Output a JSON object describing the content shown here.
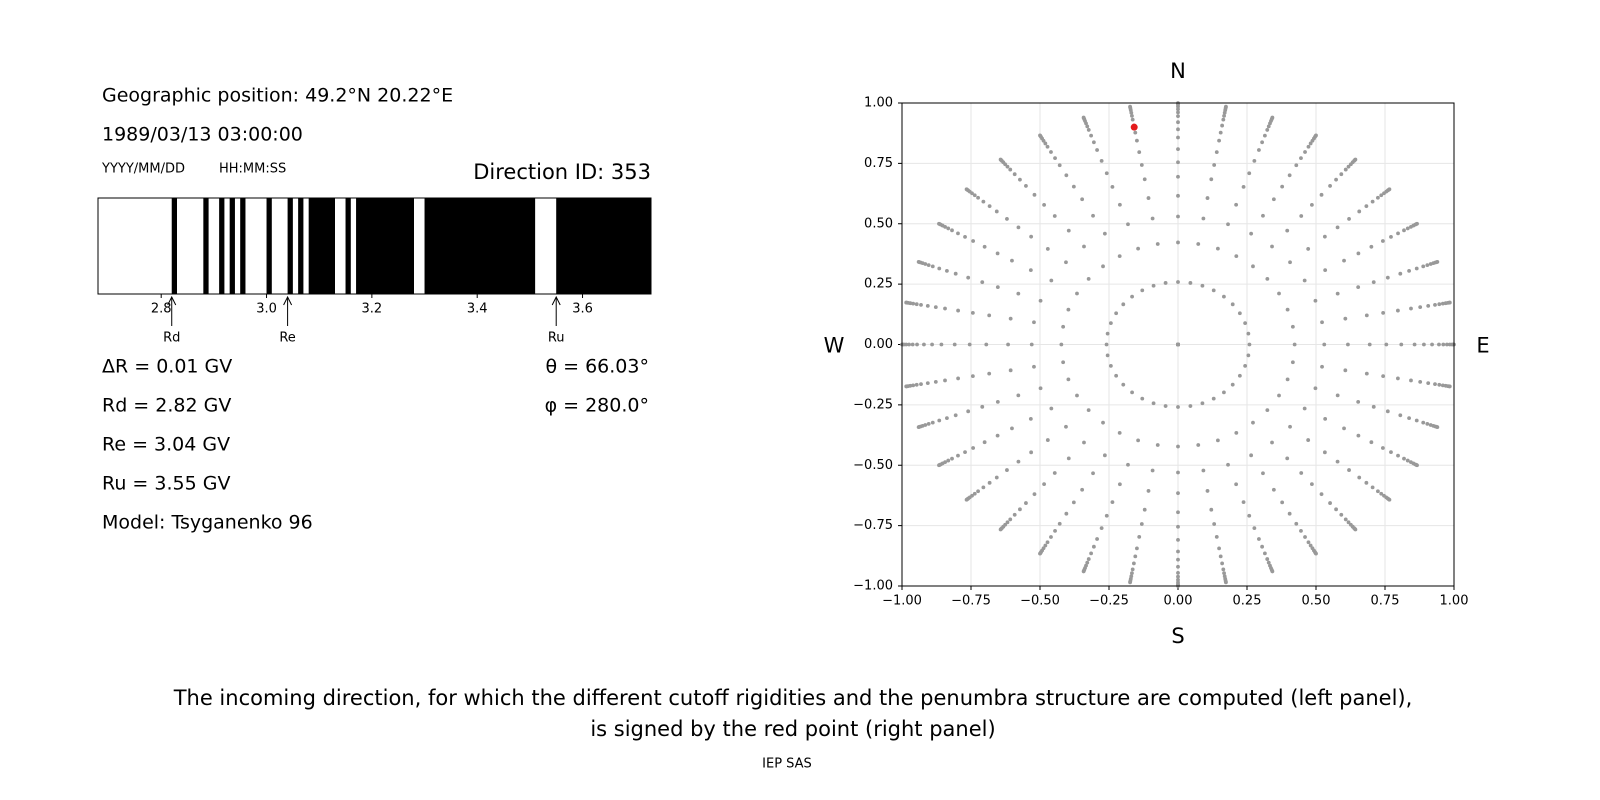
{
  "info": {
    "position": "Geographic position: 49.2°N 20.22°E",
    "datetime": "1989/03/13 03:00:00",
    "date_format": "YYYY/MM/DD",
    "time_format": "HH:MM:SS",
    "direction": "Direction ID: 353",
    "delta": "ΔR = 0.01 GV",
    "rd": "Rd = 2.82 GV",
    "re": "Re = 3.04 GV",
    "ru": "Ru = 3.55 GV",
    "model": "Model: Tsyganenko 96",
    "theta": "θ = 66.03°",
    "phi": "φ = 280.0°"
  },
  "chart_data": [
    {
      "type": "penumbra",
      "xlim": [
        2.68,
        3.73
      ],
      "xticks": [
        2.8,
        {
          "value": 3,
          "label": "3.0"
        },
        3.2,
        3.4,
        3.6
      ],
      "forbidden": [
        [
          2.82,
          2.83
        ],
        [
          2.88,
          2.89
        ],
        [
          2.91,
          2.92
        ],
        [
          2.93,
          2.94
        ],
        [
          2.95,
          2.96
        ],
        [
          3.0,
          3.01
        ],
        [
          3.04,
          3.05
        ],
        [
          3.06,
          3.07
        ],
        [
          3.08,
          3.13
        ],
        [
          3.15,
          3.16
        ],
        [
          3.17,
          3.28
        ],
        [
          3.3,
          3.51
        ],
        [
          3.55,
          3.73
        ]
      ],
      "color": "#000000",
      "markers": [
        {
          "label": "Rd",
          "value": 2.82
        },
        {
          "label": "Re",
          "value": 3.04
        },
        {
          "label": "Ru",
          "value": 3.55
        }
      ]
    },
    {
      "type": "scatter",
      "xlim": [
        -1,
        1
      ],
      "ylim": [
        -1,
        1
      ],
      "xticks": [
        {
          "value": -1,
          "label": "−1.00"
        },
        {
          "value": -0.75,
          "label": "−0.75"
        },
        {
          "value": -0.5,
          "label": "−0.50"
        },
        {
          "value": -0.25,
          "label": "−0.25"
        },
        {
          "value": 0,
          "label": "0.00"
        },
        {
          "value": 0.25,
          "label": "0.25"
        },
        {
          "value": 0.5,
          "label": "0.50"
        },
        {
          "value": 0.75,
          "label": "0.75"
        },
        {
          "value": 1,
          "label": "1.00"
        }
      ],
      "yticks": [
        {
          "value": -1,
          "label": "−1.00"
        },
        {
          "value": -0.75,
          "label": "−0.75"
        },
        {
          "value": -0.5,
          "label": "−0.50"
        },
        {
          "value": -0.25,
          "label": "−0.25"
        },
        {
          "value": 0,
          "label": "0.00"
        },
        {
          "value": 0.25,
          "label": "0.25"
        },
        {
          "value": 0.5,
          "label": "0.50"
        },
        {
          "value": 0.75,
          "label": "0.75"
        },
        {
          "value": 1,
          "label": "1.00"
        }
      ],
      "grid": true,
      "theta_grid": [
        0,
        15,
        25,
        32,
        38,
        44,
        49,
        54,
        59,
        63,
        67,
        71,
        74,
        77,
        80,
        83,
        86,
        90
      ],
      "phi_grid": [
        0,
        10,
        20,
        30,
        40,
        50,
        60,
        70,
        80,
        90,
        100,
        110,
        120,
        130,
        140,
        150,
        160,
        170,
        180,
        190,
        200,
        210,
        220,
        230,
        240,
        250,
        260,
        270,
        280,
        290,
        300,
        310,
        320,
        330,
        340,
        350
      ],
      "color": "#999999",
      "selected": {
        "theta": 66.03,
        "phi": 280,
        "color": "#e41a1c"
      },
      "directions": {
        "top": "N",
        "bottom": "S",
        "left": "W",
        "right": "E"
      }
    }
  ],
  "caption": [
    "The incoming direction, for which the different cutoff rigidities and the penumbra structure are computed (left panel),",
    "is signed by the red point (right panel)"
  ],
  "footer": "IEP SAS"
}
